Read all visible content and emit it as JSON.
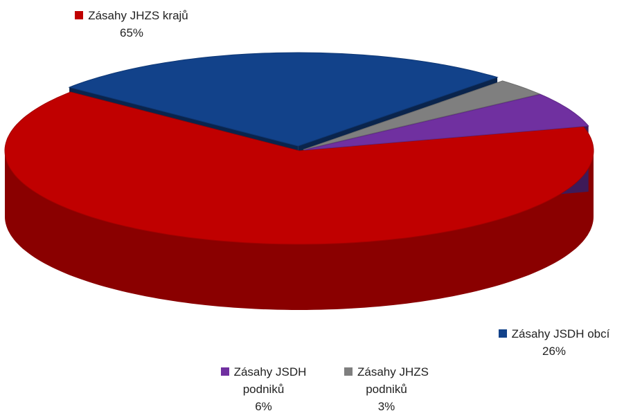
{
  "chart_data": {
    "type": "pie3d",
    "categories": [
      "Zásahy JHZS krajů",
      "Zásahy JSDH obcí",
      "Zásahy JHZS podniků",
      "Zásahy JSDH podniků"
    ],
    "values": [
      65,
      26,
      3,
      6
    ],
    "value_labels": [
      "65%",
      "26%",
      "3%",
      "6%"
    ],
    "colors": [
      "#c00000",
      "#12428a",
      "#7f7f7f",
      "#7030a0"
    ],
    "legend": true
  }
}
